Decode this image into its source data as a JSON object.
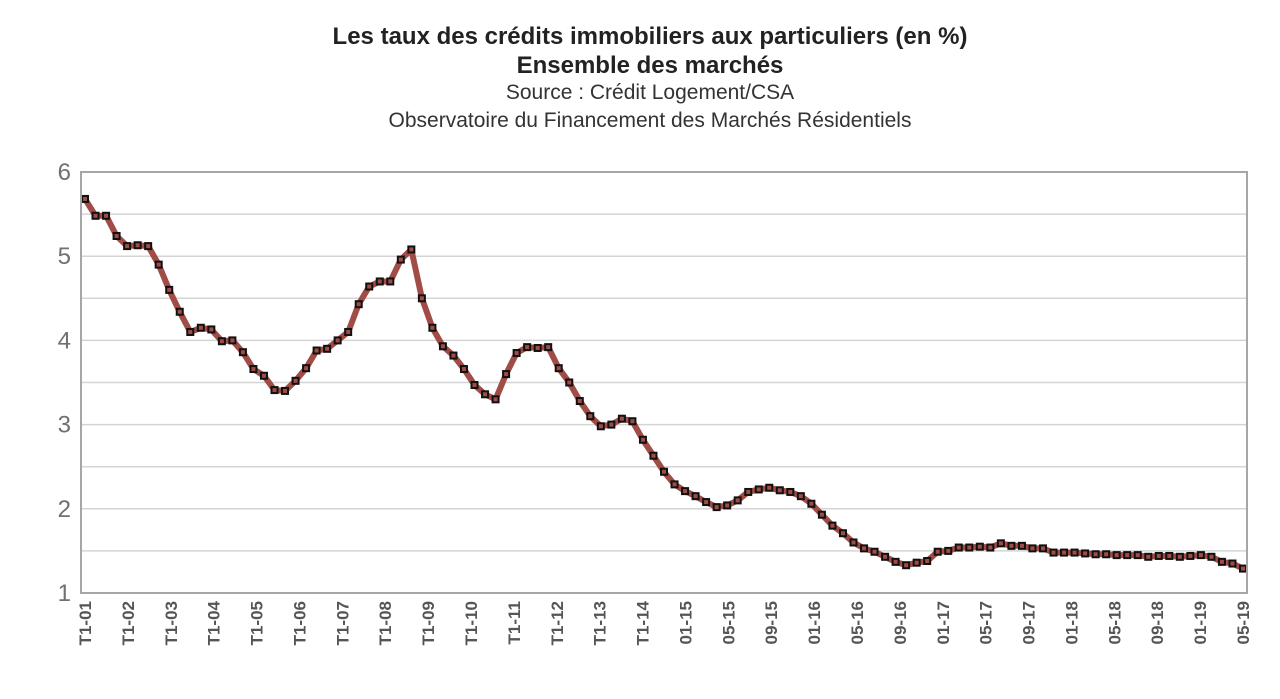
{
  "chart_data": {
    "type": "line",
    "title": "Les taux des crédits immobiliers aux particuliers (en %)",
    "subtitle": "Ensemble des marchés",
    "source": "Source : Crédit Logement/CSA",
    "observatory": "Observatoire du Financement des Marchés Résidentiels",
    "ylim": [
      1,
      6
    ],
    "yticks": [
      1,
      2,
      3,
      4,
      5,
      6
    ],
    "grid": true,
    "x_tick_labels": [
      "T1-01",
      "T1-02",
      "T1-03",
      "T1-04",
      "T1-05",
      "T1-06",
      "T1-07",
      "T1-08",
      "T1-09",
      "T1-10",
      "T1-11",
      "T1-12",
      "T1-13",
      "T1-14",
      "01-15",
      "05-15",
      "09-15",
      "01-16",
      "05-16",
      "09-16",
      "01-17",
      "05-17",
      "09-17",
      "01-18",
      "05-18",
      "09-18",
      "01-19",
      "05-19"
    ],
    "colors": {
      "line": "#a14c47",
      "marker": "#111111",
      "grid": "#d4d4d4",
      "frame": "#a6a6a6"
    },
    "series": [
      {
        "values": [
          5.68,
          5.48,
          5.48,
          5.24,
          5.12,
          5.13,
          5.12,
          4.9,
          4.6,
          4.34,
          4.1,
          4.15,
          4.13,
          3.99,
          4.0,
          3.86,
          3.66,
          3.58,
          3.41,
          3.4,
          3.52,
          3.67,
          3.88,
          3.9,
          4.0,
          4.1,
          4.43,
          4.64,
          4.7,
          4.7,
          4.96,
          5.08,
          4.5,
          4.15,
          3.93,
          3.82,
          3.66,
          3.47,
          3.36,
          3.3,
          3.6,
          3.85,
          3.92,
          3.91,
          3.92,
          3.67,
          3.5,
          3.28,
          3.1,
          2.98,
          3.0,
          3.07,
          3.04,
          2.82,
          2.63,
          2.44,
          2.29,
          2.21,
          2.15,
          2.08,
          2.02,
          2.04,
          2.1,
          2.2,
          2.23,
          2.25,
          2.22,
          2.2,
          2.15,
          2.06,
          1.93,
          1.8,
          1.71,
          1.6,
          1.53,
          1.49,
          1.43,
          1.37,
          1.33,
          1.36,
          1.38,
          1.49,
          1.5,
          1.54,
          1.54,
          1.55,
          1.54,
          1.59,
          1.56,
          1.56,
          1.53,
          1.53,
          1.48,
          1.48,
          1.48,
          1.47,
          1.46,
          1.46,
          1.45,
          1.45,
          1.45,
          1.43,
          1.44,
          1.44,
          1.43,
          1.44,
          1.45,
          1.43,
          1.37,
          1.35,
          1.29
        ]
      }
    ]
  }
}
